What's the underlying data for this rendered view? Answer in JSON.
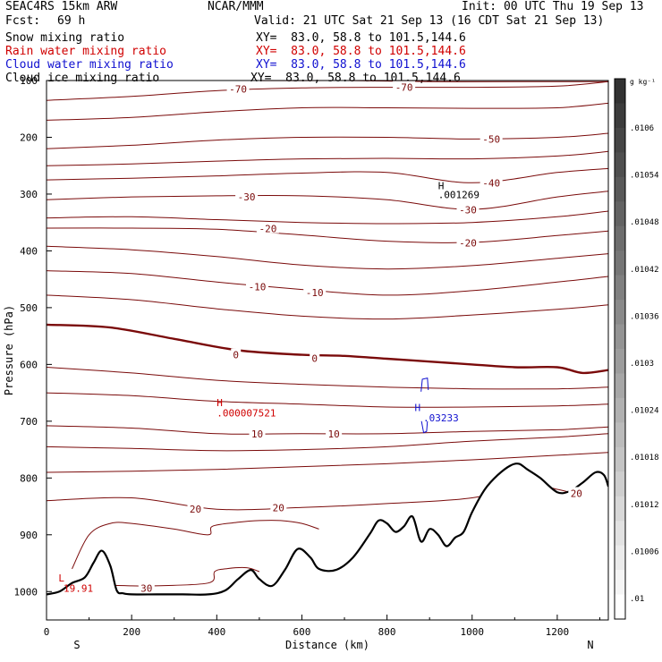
{
  "header": {
    "model": "SEAC4RS 15km ARW",
    "center": "NCAR/MMM",
    "init": "Init: 00 UTC Thu 19 Sep 13",
    "fcst_label": "Fcst:",
    "fcst_value": "69 h",
    "valid": "Valid: 21 UTC Sat 21 Sep 13 (16 CDT Sat 21 Sep 13)"
  },
  "fields": [
    {
      "name": "Snow mixing ratio",
      "xy": "XY=  83.0, 58.8 to 101.5,144.6",
      "color": "#000000"
    },
    {
      "name": "Rain water mixing ratio",
      "xy": "XY=  83.0, 58.8 to 101.5,144.6",
      "color": "#d00000"
    },
    {
      "name": "Cloud water mixing ratio",
      "xy": "XY=  83.0, 58.8 to 101.5,144.6",
      "color": "#1010d0"
    },
    {
      "name": "Cloud ice mixing ratio",
      "xy": "XY=  83.0, 58.8 to 101.5,144.6",
      "color": "#000000"
    }
  ],
  "chart_data": {
    "type": "line",
    "title": "",
    "xlabel": "Distance (km)",
    "ylabel": "Pressure (hPa)",
    "xlim": [
      0,
      1320
    ],
    "ylim": [
      1050,
      100
    ],
    "x_ticks": [
      0,
      200,
      400,
      600,
      800,
      1000,
      1200
    ],
    "y_ticks": [
      200,
      300,
      400,
      500,
      600,
      700,
      800,
      900,
      1000
    ],
    "y_top_label": "100",
    "orientation": {
      "left": "S",
      "right": "N"
    },
    "colorbar": {
      "unit": "g kg⁻¹",
      "labels": [
        ".0106",
        ".01054",
        ".01048",
        ".01042",
        ".01036",
        ".0103",
        ".01024",
        ".01018",
        ".01012",
        ".01006",
        ".01"
      ]
    },
    "contour_labels": [
      {
        "text": "-70",
        "x": 450,
        "p": 115
      },
      {
        "text": "-70",
        "x": 840,
        "p": 112
      },
      {
        "text": "-50",
        "x": 1045,
        "p": 203
      },
      {
        "text": "-40",
        "x": 1045,
        "p": 280
      },
      {
        "text": "-30",
        "x": 470,
        "p": 305
      },
      {
        "text": "-30",
        "x": 990,
        "p": 328
      },
      {
        "text": "-20",
        "x": 520,
        "p": 361
      },
      {
        "text": "-20",
        "x": 990,
        "p": 386
      },
      {
        "text": "-10",
        "x": 495,
        "p": 463
      },
      {
        "text": "-10",
        "x": 630,
        "p": 473
      },
      {
        "text": "0",
        "x": 445,
        "p": 583
      },
      {
        "text": "0",
        "x": 630,
        "p": 589
      },
      {
        "text": "10",
        "x": 495,
        "p": 722
      },
      {
        "text": "10",
        "x": 675,
        "p": 722
      },
      {
        "text": "20",
        "x": 350,
        "p": 855
      },
      {
        "text": "20",
        "x": 545,
        "p": 852
      },
      {
        "text": "20",
        "x": 1245,
        "p": 827
      },
      {
        "text": "30",
        "x": 235,
        "p": 994
      }
    ],
    "annotations": [
      {
        "text": "H",
        "x": 920,
        "p": 285,
        "color": "#000000"
      },
      {
        "text": ".001269",
        "x": 920,
        "p": 301,
        "color": "#000000"
      },
      {
        "text": "H",
        "x": 400,
        "p": 667,
        "color": "#d00000"
      },
      {
        "text": ".000007521",
        "x": 400,
        "p": 685,
        "color": "#d00000"
      },
      {
        "text": "H",
        "x": 865,
        "p": 676,
        "color": "#1010d0"
      },
      {
        "text": ".03233",
        "x": 885,
        "p": 694,
        "color": "#1010d0"
      },
      {
        "text": "L",
        "x": 28,
        "p": 976,
        "color": "#d00000"
      },
      {
        "text": "19.91",
        "x": 40,
        "p": 994,
        "color": "#d00000"
      }
    ],
    "series": [
      {
        "level": -80,
        "x": [
          280,
          380,
          500,
          700,
          900,
          1100,
          1320
        ],
        "p": [
          90,
          95,
          100,
          100,
          102,
          102,
          102
        ]
      },
      {
        "level": -70,
        "x": [
          0,
          200,
          400,
          600,
          800,
          1000,
          1200,
          1320
        ],
        "p": [
          135,
          128,
          118,
          113,
          112,
          112,
          110,
          102
        ]
      },
      {
        "level": -65,
        "x": [
          0,
          200,
          400,
          600,
          800,
          1000,
          1200,
          1320
        ],
        "p": [
          170,
          165,
          155,
          148,
          148,
          149,
          148,
          140
        ]
      },
      {
        "level": -50,
        "x": [
          0,
          200,
          400,
          600,
          800,
          1000,
          1200,
          1320
        ],
        "p": [
          220,
          214,
          205,
          200,
          200,
          203,
          200,
          193
        ]
      },
      {
        "level": -45,
        "x": [
          0,
          200,
          400,
          600,
          800,
          1000,
          1200,
          1320
        ],
        "p": [
          250,
          247,
          242,
          238,
          237,
          238,
          233,
          225
        ]
      },
      {
        "level": -40,
        "x": [
          0,
          200,
          400,
          600,
          800,
          1000,
          1200,
          1320
        ],
        "p": [
          275,
          272,
          268,
          263,
          262,
          280,
          262,
          255
        ]
      },
      {
        "level": -30,
        "x": [
          0,
          200,
          400,
          600,
          800,
          1000,
          1200,
          1320
        ],
        "p": [
          310,
          305,
          303,
          303,
          310,
          327,
          305,
          295
        ]
      },
      {
        "level": -25,
        "x": [
          0,
          200,
          400,
          600,
          800,
          1000,
          1200,
          1320
        ],
        "p": [
          342,
          340,
          345,
          350,
          352,
          350,
          340,
          330
        ]
      },
      {
        "level": -20,
        "x": [
          0,
          200,
          400,
          600,
          800,
          1000,
          1200,
          1320
        ],
        "p": [
          360,
          360,
          362,
          372,
          383,
          385,
          373,
          365
        ]
      },
      {
        "level": -15,
        "x": [
          0,
          200,
          400,
          600,
          800,
          1000,
          1200,
          1320
        ],
        "p": [
          392,
          398,
          410,
          425,
          432,
          426,
          413,
          405
        ]
      },
      {
        "level": -10,
        "x": [
          0,
          200,
          400,
          600,
          800,
          1000,
          1200,
          1320
        ],
        "p": [
          435,
          440,
          455,
          468,
          478,
          470,
          455,
          445
        ]
      },
      {
        "level": -5,
        "x": [
          0,
          200,
          400,
          600,
          800,
          1000,
          1200,
          1320
        ],
        "p": [
          478,
          486,
          502,
          515,
          520,
          513,
          503,
          495
        ]
      },
      {
        "level": 0,
        "bold": true,
        "x": [
          0,
          150,
          300,
          450,
          600,
          700,
          800,
          900,
          1000,
          1100,
          1200,
          1260,
          1320
        ],
        "p": [
          530,
          535,
          555,
          575,
          583,
          585,
          590,
          595,
          600,
          605,
          605,
          615,
          610
        ]
      },
      {
        "level": 5,
        "x": [
          0,
          200,
          400,
          600,
          800,
          1000,
          1200,
          1320
        ],
        "p": [
          605,
          615,
          628,
          635,
          640,
          643,
          643,
          640
        ]
      },
      {
        "level": 8,
        "x": [
          0,
          200,
          400,
          600,
          800,
          1000,
          1200,
          1320
        ],
        "p": [
          650,
          655,
          665,
          670,
          675,
          675,
          673,
          670
        ]
      },
      {
        "level": 10,
        "x": [
          0,
          200,
          400,
          600,
          800,
          1000,
          1200,
          1320
        ],
        "p": [
          708,
          712,
          722,
          722,
          722,
          718,
          715,
          710
        ]
      },
      {
        "level": 13,
        "x": [
          0,
          200,
          400,
          600,
          800,
          1000,
          1200,
          1320
        ],
        "p": [
          745,
          748,
          752,
          750,
          745,
          735,
          728,
          722
        ]
      },
      {
        "level": 17,
        "x": [
          0,
          200,
          400,
          600,
          800,
          1000,
          1200,
          1320
        ],
        "p": [
          790,
          788,
          785,
          780,
          775,
          768,
          760,
          755
        ]
      },
      {
        "level": 20,
        "x": [
          0,
          200,
          400,
          600,
          800,
          1000,
          1130,
          1200,
          1260,
          1320
        ],
        "p": [
          840,
          835,
          855,
          852,
          845,
          835,
          810,
          820,
          828,
          815
        ]
      },
      {
        "level": 30,
        "x": [
          60,
          100,
          150,
          200,
          300,
          380,
          390,
          450,
          500,
          550,
          600,
          640
        ],
        "p": [
          960,
          900,
          880,
          880,
          890,
          900,
          885,
          878,
          875,
          875,
          880,
          890
        ]
      },
      {
        "level": 30,
        "x": [
          100,
          150,
          200,
          250,
          380,
          395,
          420,
          470,
          500
        ],
        "p": [
          1000,
          990,
          990,
          990,
          985,
          965,
          960,
          958,
          965
        ]
      }
    ],
    "terrain": {
      "x": [
        0,
        30,
        60,
        90,
        110,
        130,
        150,
        165,
        180,
        200,
        260,
        320,
        380,
        420,
        450,
        480,
        500,
        530,
        560,
        590,
        620,
        640,
        680,
        720,
        760,
        780,
        800,
        820,
        840,
        860,
        880,
        900,
        920,
        940,
        960,
        980,
        1000,
        1030,
        1060,
        1090,
        1110,
        1130,
        1160,
        1200,
        1230,
        1260,
        1290,
        1310,
        1320
      ],
      "p": [
        1005,
        1000,
        985,
        975,
        950,
        928,
        955,
        998,
        1003,
        1005,
        1005,
        1005,
        1005,
        998,
        978,
        962,
        978,
        990,
        962,
        925,
        940,
        960,
        962,
        940,
        898,
        875,
        880,
        895,
        885,
        868,
        912,
        890,
        900,
        920,
        905,
        895,
        860,
        820,
        795,
        778,
        775,
        785,
        800,
        825,
        823,
        808,
        790,
        795,
        815
      ]
    }
  }
}
